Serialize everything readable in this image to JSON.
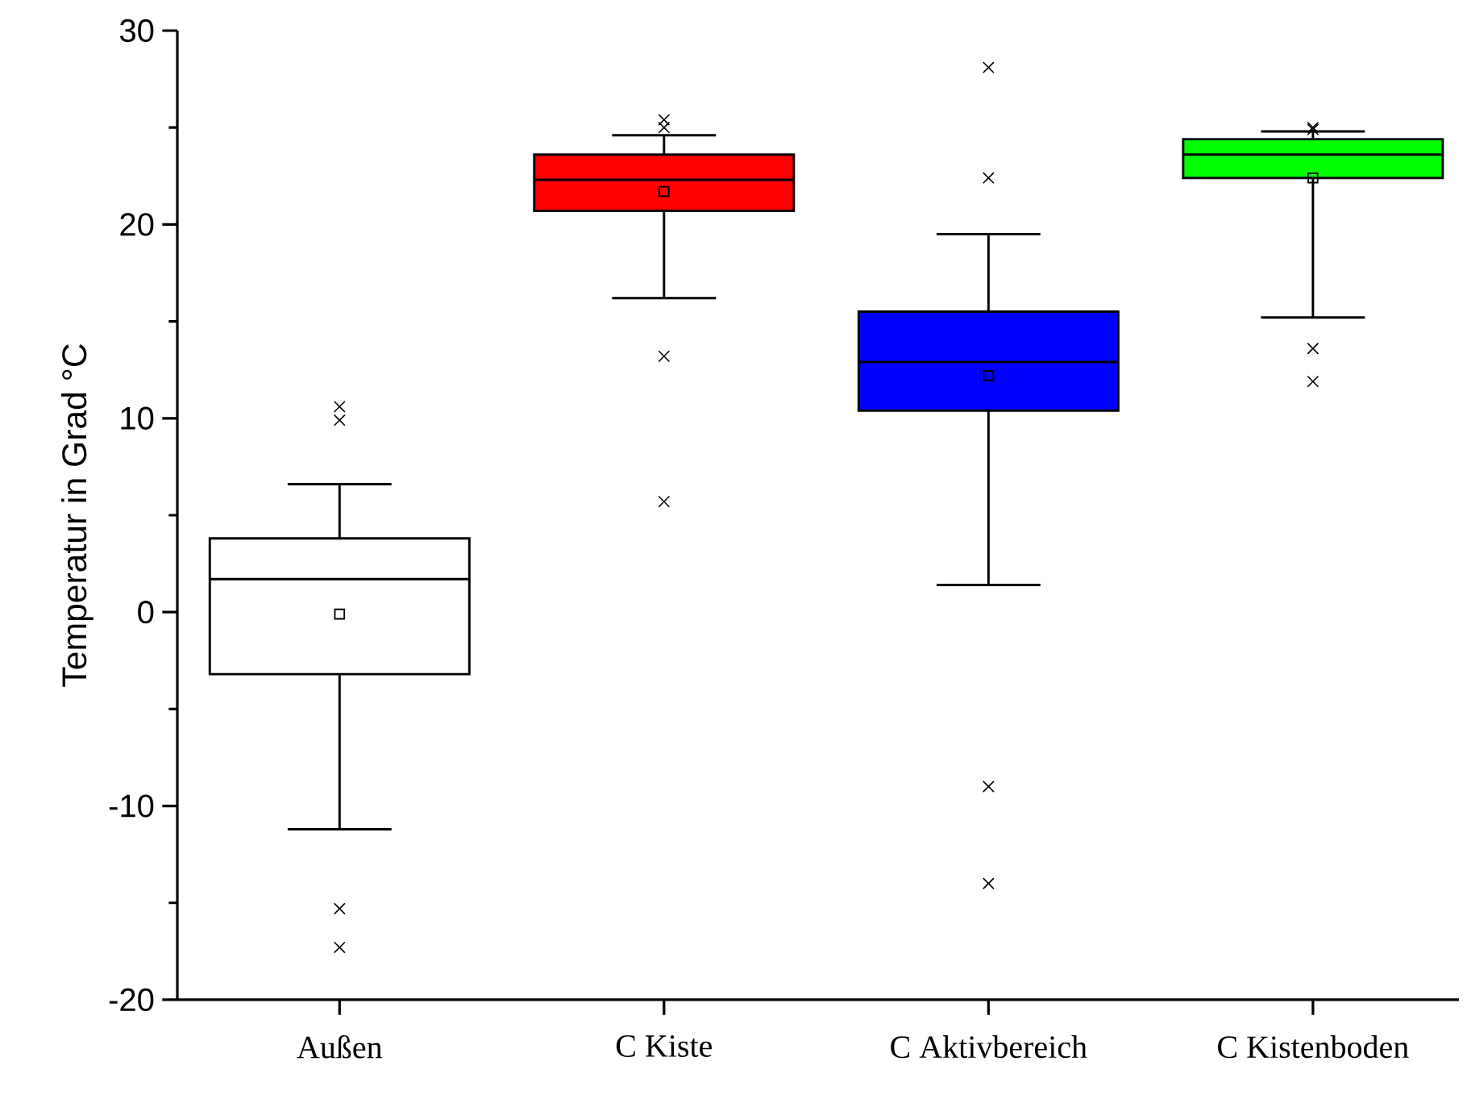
{
  "chart_data": {
    "type": "box",
    "ylabel": "Temperatur in Grad °C",
    "categories": [
      "Außen",
      "C Kiste",
      "C Aktivbereich",
      "C Kistenboden"
    ],
    "colors": [
      "#ffffff",
      "#ff0000",
      "#0000ff",
      "#00ff00"
    ],
    "boxes": [
      {
        "low": -11.2,
        "q1": -3.2,
        "median": 1.7,
        "q3": 3.8,
        "high": 6.6,
        "mean": -0.1,
        "outliers": [
          9.9,
          10.6,
          -15.3,
          -17.3
        ]
      },
      {
        "low": 16.2,
        "q1": 20.7,
        "median": 22.3,
        "q3": 23.6,
        "high": 24.6,
        "mean": 21.7,
        "outliers": [
          25.0,
          25.4,
          13.2,
          5.7
        ]
      },
      {
        "low": 1.4,
        "q1": 10.4,
        "median": 12.9,
        "q3": 15.5,
        "high": 19.5,
        "mean": 12.2,
        "outliers": [
          22.4,
          28.1,
          -9.0,
          -14.0
        ]
      },
      {
        "low": 15.2,
        "q1": 22.4,
        "median": 23.6,
        "q3": 24.4,
        "high": 24.8,
        "mean": 22.4,
        "outliers": [
          24.9,
          25.0,
          13.6,
          11.9
        ]
      }
    ],
    "ylim": [
      -20,
      30
    ],
    "yticks": [
      -20,
      -10,
      0,
      10,
      20,
      30
    ]
  }
}
